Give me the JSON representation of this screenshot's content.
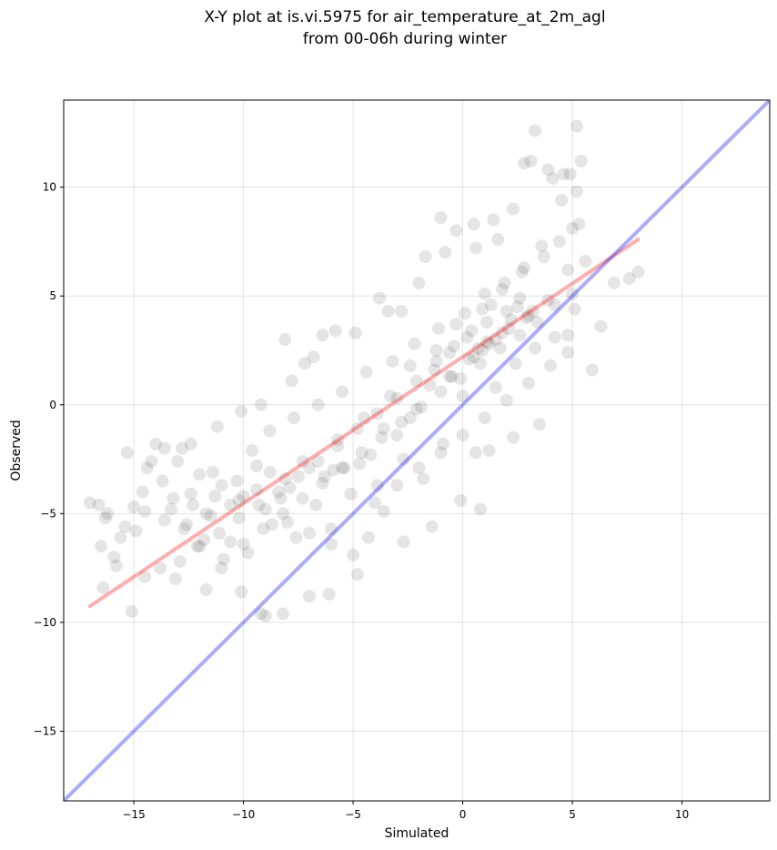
{
  "chart_data": {
    "type": "scatter",
    "title_line1": "X-Y plot at is.vi.5975 for air_temperature_at_2m_agl",
    "title_line2": "from 00-06h during winter",
    "xlabel": "Simulated",
    "ylabel": "Observed",
    "xlim": [
      -18.2,
      14.0
    ],
    "ylim": [
      -18.2,
      14.0
    ],
    "xticks": [
      -15,
      -10,
      -5,
      0,
      5,
      10
    ],
    "yticks": [
      -15,
      -10,
      -5,
      0,
      5,
      10
    ],
    "xtick_labels": [
      "−15",
      "−10",
      "−5",
      "0",
      "5",
      "10"
    ],
    "ytick_labels": [
      "−15",
      "−10",
      "−5",
      "0",
      "5",
      "10"
    ],
    "grid": true,
    "point_color": "#000000",
    "point_alpha": 0.1,
    "regression_line": {
      "x": [
        -17.0,
        8.0
      ],
      "y": [
        -9.25,
        7.6
      ],
      "color": "#ff0000",
      "alpha": 0.32
    },
    "identity_line": {
      "x": [
        -18.2,
        14.0
      ],
      "y": [
        -18.2,
        14.0
      ],
      "color": "#0000ff",
      "alpha": 0.33
    },
    "points": [
      [
        -16.2,
        -5
      ],
      [
        -15.6,
        -6.1
      ],
      [
        -15.9,
        -7
      ],
      [
        -14.9,
        -5.8
      ],
      [
        -16.6,
        -4.6
      ],
      [
        -15.3,
        -2.2
      ],
      [
        -14.6,
        -4
      ],
      [
        -14.2,
        -2.6
      ],
      [
        -13.7,
        -3.5
      ],
      [
        -13.3,
        -4.8
      ],
      [
        -12.8,
        -2
      ],
      [
        -12.4,
        -4.1
      ],
      [
        -12.1,
        -6.5
      ],
      [
        -11.7,
        -5
      ],
      [
        -11.4,
        -3.1
      ],
      [
        -11,
        -7.5
      ],
      [
        -10.6,
        -6.3
      ],
      [
        -10.2,
        -4.4
      ],
      [
        -9.8,
        -6.8
      ],
      [
        -9.4,
        -2.8
      ],
      [
        -9,
        -9.7
      ],
      [
        -8.7,
        -5.5
      ],
      [
        -8.3,
        -4.3
      ],
      [
        -8.8,
        -3.1
      ],
      [
        -7.9,
        -3.8
      ],
      [
        -7.6,
        -6.1
      ],
      [
        -7.3,
        -2.6
      ],
      [
        -7,
        -8.8
      ],
      [
        -6.7,
        -4.6
      ],
      [
        -6.3,
        -3.3
      ],
      [
        -6,
        -5.7
      ],
      [
        -5.7,
        -1.6
      ],
      [
        -5.4,
        -2.9
      ],
      [
        -5.1,
        -4.1
      ],
      [
        -4.8,
        -7.8
      ],
      [
        -4.5,
        -0.6
      ],
      [
        -4.2,
        -2.3
      ],
      [
        -3.9,
        -3.7
      ],
      [
        -3.6,
        -4.9
      ],
      [
        -3.3,
        0.4
      ],
      [
        -3,
        -1.4
      ],
      [
        -2.7,
        -2.5
      ],
      [
        -2.4,
        1.8
      ],
      [
        -2.1,
        -0.2
      ],
      [
        -1.8,
        -3.4
      ],
      [
        -1.5,
        0.9
      ],
      [
        -1.2,
        2.5
      ],
      [
        -0.9,
        -1.8
      ],
      [
        -0.6,
        1.3
      ],
      [
        -0.3,
        3.7
      ],
      [
        0,
        0.4
      ],
      [
        0.3,
        2.1
      ],
      [
        0.6,
        -2.2
      ],
      [
        0.9,
        4.4
      ],
      [
        1.2,
        2.8
      ],
      [
        1.5,
        0.8
      ],
      [
        1.8,
        5.3
      ],
      [
        2.1,
        3.5
      ],
      [
        2.4,
        1.9
      ],
      [
        2.7,
        6.1
      ],
      [
        3,
        4.1
      ],
      [
        3.3,
        2.6
      ],
      [
        3.6,
        7.3
      ],
      [
        3.9,
        4.8
      ],
      [
        4.2,
        3.1
      ],
      [
        4.5,
        9.4
      ],
      [
        4.8,
        6.2
      ],
      [
        5.1,
        4.4
      ],
      [
        5.4,
        11.2
      ],
      [
        5.2,
        12.8
      ],
      [
        3.3,
        12.6
      ],
      [
        2.8,
        11.1
      ],
      [
        4.9,
        10.6
      ],
      [
        5.3,
        8.3
      ],
      [
        6.9,
        5.6
      ],
      [
        7.6,
        5.8
      ],
      [
        8.0,
        6.1
      ],
      [
        6.3,
        3.6
      ],
      [
        5.9,
        1.6
      ],
      [
        4.8,
        3.2
      ],
      [
        3.5,
        -0.9
      ],
      [
        2.3,
        -1.5
      ],
      [
        1.2,
        -2.1
      ],
      [
        0.8,
        -4.8
      ],
      [
        -0.1,
        -4.4
      ],
      [
        -1.4,
        -5.6
      ],
      [
        -2.7,
        -6.3
      ],
      [
        -4.3,
        -6.1
      ],
      [
        -6.1,
        -8.7
      ],
      [
        -8.2,
        -9.6
      ],
      [
        -9.2,
        -9.6
      ],
      [
        -10.1,
        -8.6
      ],
      [
        -11.7,
        -8.5
      ],
      [
        -13.1,
        -8
      ],
      [
        -14.5,
        -7.9
      ],
      [
        -15.1,
        -9.5
      ],
      [
        -16.4,
        -8.4
      ],
      [
        -16.5,
        -6.5
      ],
      [
        -17.0,
        -4.5
      ],
      [
        -15.8,
        -7.4
      ],
      [
        -7.2,
        1.9
      ],
      [
        -8.1,
        3.0
      ],
      [
        -6.4,
        3.2
      ],
      [
        -5.8,
        3.4
      ],
      [
        -3.8,
        4.9
      ],
      [
        -2.8,
        4.3
      ],
      [
        -1.7,
        6.8
      ],
      [
        -1.0,
        8.6
      ],
      [
        -0.3,
        8.0
      ],
      [
        0.5,
        8.3
      ],
      [
        1.4,
        8.5
      ],
      [
        2.3,
        9.0
      ],
      [
        3.1,
        11.2
      ],
      [
        3.9,
        10.8
      ],
      [
        4.1,
        10.4
      ],
      [
        5.2,
        9.8
      ],
      [
        4.6,
        10.6
      ],
      [
        1.6,
        7.6
      ],
      [
        0.6,
        7.2
      ],
      [
        -0.8,
        7.0
      ],
      [
        -2.0,
        5.6
      ],
      [
        -3.4,
        4.3
      ],
      [
        -4.9,
        3.3
      ],
      [
        -6.8,
        2.2
      ],
      [
        -7.8,
        1.1
      ],
      [
        -9.2,
        0.0
      ],
      [
        -10.1,
        -0.3
      ],
      [
        -11.2,
        -1.0
      ],
      [
        -12.4,
        -1.8
      ],
      [
        -13.6,
        -2.0
      ],
      [
        -14.4,
        -2.9
      ],
      [
        -15.0,
        -4.7
      ],
      [
        -12.6,
        -5.5
      ],
      [
        -11.3,
        -4.2
      ],
      [
        -10.3,
        -3.5
      ],
      [
        -9.6,
        -2.1
      ],
      [
        -8.8,
        -1.2
      ],
      [
        -7.7,
        -0.6
      ],
      [
        -6.6,
        0.0
      ],
      [
        -5.5,
        0.6
      ],
      [
        -4.4,
        1.5
      ],
      [
        -3.2,
        2.0
      ],
      [
        -2.2,
        2.8
      ],
      [
        -1.1,
        3.5
      ],
      [
        0.1,
        4.2
      ],
      [
        1.0,
        5.1
      ],
      [
        1.9,
        5.6
      ],
      [
        2.8,
        6.3
      ],
      [
        3.7,
        6.8
      ],
      [
        4.4,
        7.5
      ],
      [
        5.0,
        8.1
      ],
      [
        5.6,
        6.6
      ],
      [
        5.0,
        5.1
      ],
      [
        4.2,
        4.6
      ],
      [
        3.4,
        3.8
      ],
      [
        2.6,
        3.2
      ],
      [
        1.7,
        2.6
      ],
      [
        0.8,
        1.9
      ],
      [
        -0.1,
        1.2
      ],
      [
        -1.0,
        0.6
      ],
      [
        -1.9,
        -0.1
      ],
      [
        -2.8,
        -0.8
      ],
      [
        -3.7,
        -1.5
      ],
      [
        -4.6,
        -2.2
      ],
      [
        -5.5,
        -2.9
      ],
      [
        -6.4,
        -3.6
      ],
      [
        -7.3,
        -4.3
      ],
      [
        -8.2,
        -5.0
      ],
      [
        -9.1,
        -5.7
      ],
      [
        -10.0,
        -6.4
      ],
      [
        -10.9,
        -7.1
      ],
      [
        -11.8,
        -6.2
      ],
      [
        -12.7,
        -5.7
      ],
      [
        -13.6,
        -5.3
      ],
      [
        -14.5,
        -4.9
      ],
      [
        -15.4,
        -5.6
      ],
      [
        -16.3,
        -5.2
      ],
      [
        -14.0,
        -1.8
      ],
      [
        -13.0,
        -2.6
      ],
      [
        -12.0,
        -3.2
      ],
      [
        -11.0,
        -3.7
      ],
      [
        -10.0,
        -4.2
      ],
      [
        -9.0,
        -4.8
      ],
      [
        -8.0,
        -5.4
      ],
      [
        -7.0,
        -5.9
      ],
      [
        -6.0,
        -6.4
      ],
      [
        -5.0,
        -6.9
      ],
      [
        -4.0,
        -4.5
      ],
      [
        -3.0,
        -3.7
      ],
      [
        -2.0,
        -2.9
      ],
      [
        -1.0,
        -2.2
      ],
      [
        0.0,
        -1.4
      ],
      [
        1.0,
        -0.6
      ],
      [
        2.0,
        0.2
      ],
      [
        3.0,
        1.0
      ],
      [
        4.0,
        1.8
      ],
      [
        4.8,
        2.4
      ],
      [
        -1.3,
        1.6
      ],
      [
        -0.6,
        2.4
      ],
      [
        0.2,
        3.1
      ],
      [
        1.1,
        3.8
      ],
      [
        2.0,
        4.3
      ],
      [
        2.6,
        4.9
      ],
      [
        1.3,
        4.6
      ],
      [
        0.4,
        3.4
      ],
      [
        -0.4,
        2.7
      ],
      [
        -1.2,
        2.0
      ],
      [
        -2.1,
        1.1
      ],
      [
        -3.0,
        0.3
      ],
      [
        -3.9,
        -0.4
      ],
      [
        -4.8,
        -1.1
      ],
      [
        -5.7,
        -1.9
      ],
      [
        -6.6,
        -2.6
      ],
      [
        -7.5,
        -3.3
      ],
      [
        -8.4,
        -4.0
      ],
      [
        -9.3,
        -4.6
      ],
      [
        -10.2,
        -5.2
      ],
      [
        -11.1,
        -5.9
      ],
      [
        -12.0,
        -6.5
      ],
      [
        -12.9,
        -7.2
      ],
      [
        -13.8,
        -7.5
      ],
      [
        1.8,
        3.3
      ],
      [
        2.2,
        3.9
      ],
      [
        2.5,
        4.5
      ],
      [
        1.5,
        3.0
      ],
      [
        0.9,
        2.5
      ],
      [
        0.5,
        2.2
      ],
      [
        2.9,
        4.0
      ],
      [
        3.2,
        4.3
      ],
      [
        1.1,
        2.9
      ],
      [
        0.7,
        2.6
      ],
      [
        -0.5,
        1.3
      ],
      [
        -2.4,
        -0.6
      ],
      [
        -3.6,
        -1.1
      ],
      [
        -4.7,
        -2.7
      ],
      [
        -5.9,
        -3.0
      ],
      [
        -7.0,
        -2.9
      ],
      [
        -8.1,
        -3.4
      ],
      [
        -9.4,
        -3.9
      ],
      [
        -10.6,
        -4.6
      ],
      [
        -11.5,
        -5.1
      ],
      [
        -12.3,
        -4.6
      ],
      [
        -13.2,
        -4.3
      ]
    ]
  }
}
